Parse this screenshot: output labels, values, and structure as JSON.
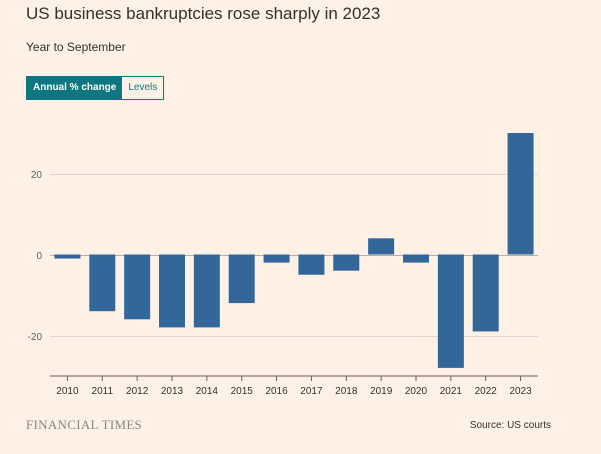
{
  "header": {
    "title": "US business bankruptcies rose sharply in 2023",
    "subtitle": "Year to September"
  },
  "toggle": {
    "active_label": "Annual % change",
    "inactive_label": "Levels"
  },
  "footer": {
    "brand": "FINANCIAL TIMES",
    "source": "Source: US courts"
  },
  "colors": {
    "bar": "#336699",
    "background": "#fff1e5",
    "toggle_accent": "#0d7680"
  },
  "chart_data": {
    "type": "bar",
    "categories": [
      "2010",
      "2011",
      "2012",
      "2013",
      "2014",
      "2015",
      "2016",
      "2017",
      "2018",
      "2019",
      "2020",
      "2021",
      "2022",
      "2023"
    ],
    "values": [
      -1,
      -14,
      -16,
      -18,
      -18,
      -12,
      -2,
      -5,
      -4,
      4,
      -2,
      -28,
      -19,
      30
    ],
    "ylim": [
      -30,
      33
    ],
    "yticks": [
      20,
      0,
      -20
    ],
    "grid": true
  }
}
